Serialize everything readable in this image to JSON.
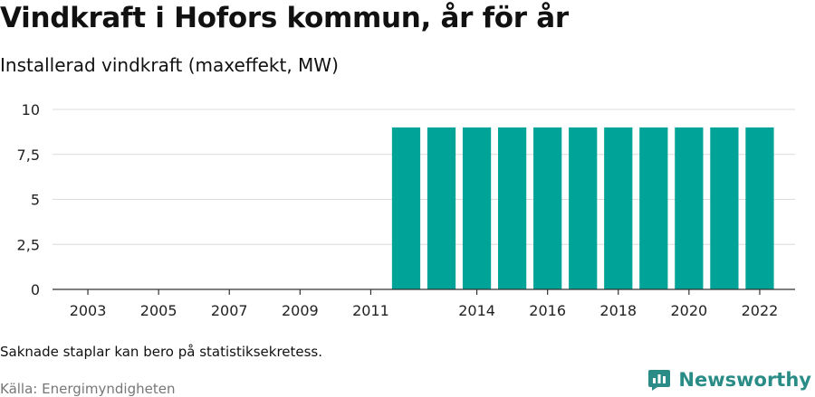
{
  "title": "Vindkraft i Hofors kommun, år för år",
  "subtitle": "Installerad vindkraft (maxeffekt, MW)",
  "note": "Saknade staplar kan bero på statistiksekretess.",
  "source": "Källa: Energimyndigheten",
  "brand": {
    "name": "Newsworthy",
    "color": "#2a8c86",
    "icon": "newsworthy-logo-icon"
  },
  "colors": {
    "bar": "#00a398",
    "grid": "#dcdcdc",
    "axis": "#333333"
  },
  "chart_data": {
    "type": "bar",
    "categories": [
      2012,
      2013,
      2014,
      2015,
      2016,
      2017,
      2018,
      2019,
      2020,
      2021,
      2022
    ],
    "values": [
      9,
      9,
      9,
      9,
      9,
      9,
      9,
      9,
      9,
      9,
      9
    ],
    "xlim": [
      2002,
      2023
    ],
    "x_ticks": [
      2003,
      2005,
      2007,
      2009,
      2011,
      2014,
      2016,
      2018,
      2020,
      2022
    ],
    "ylim": [
      0,
      10
    ],
    "y_ticks": [
      0,
      2.5,
      5,
      7.5,
      10
    ],
    "y_tick_labels": [
      "0",
      "2,5",
      "5",
      "7,5",
      "10"
    ],
    "xlabel": "",
    "ylabel": "",
    "grid": true,
    "legend": "none"
  }
}
